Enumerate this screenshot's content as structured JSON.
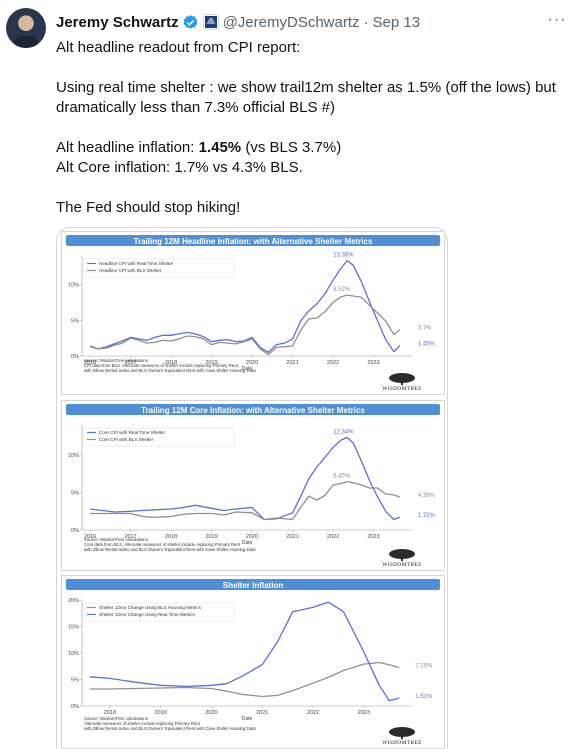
{
  "tweet": {
    "author_name": "Jeremy Schwartz",
    "handle": "@JeremyDSchwartz",
    "separator": "·",
    "date": "Sep 13",
    "more": "···",
    "verified_icon": "verified-badge-icon",
    "affiliation_icon": "wisdomtree-affiliate-icon",
    "text": {
      "line1": "Alt headline readout from CPI report:",
      "line2": "Using real time shelter : we show trail12m shelter as 1.5% (off the lows) but dramatically less than 7.3% official BLS #)",
      "line3_prefix": "Alt headline inflation: ",
      "line3_bold": "1.45%",
      "line3_suffix": " (vs BLS 3.7%)",
      "line4": "Alt Core inflation: 1.7% vs 4.3% BLS.",
      "line5": "The Fed should stop hiking!"
    },
    "colors": {
      "accent": "#1d9bf0",
      "secondary_text": "#536471",
      "gold": "#f2b300"
    }
  },
  "chart_data": [
    {
      "type": "line",
      "title": "Trailing 12M Headline Inflation: with Alternative Shelter Metrics",
      "title_bar_color": "#4f8fd8",
      "xlabel": "Date",
      "ylabel": "",
      "ylim": [
        0,
        14
      ],
      "x_ticks": [
        "2016",
        "2017",
        "2018",
        "2019",
        "2020",
        "2021",
        "2022",
        "2023"
      ],
      "y_ticks": [
        "0%",
        "5%",
        "10%"
      ],
      "grid": false,
      "legend": "top-left",
      "series": [
        {
          "name": "Headline CPI with Real Time Shelter",
          "color": "#5b6fd1",
          "x": [
            2016.0,
            2016.2,
            2016.4,
            2016.6,
            2016.8,
            2017.0,
            2017.2,
            2017.4,
            2017.6,
            2017.8,
            2018.0,
            2018.2,
            2018.4,
            2018.6,
            2018.8,
            2019.0,
            2019.2,
            2019.4,
            2019.6,
            2019.8,
            2020.0,
            2020.2,
            2020.4,
            2020.6,
            2020.8,
            2021.0,
            2021.2,
            2021.4,
            2021.6,
            2021.8,
            2022.0,
            2022.2,
            2022.35,
            2022.5,
            2022.7,
            2022.9,
            2023.1,
            2023.3,
            2023.5,
            2023.65
          ],
          "y": [
            1.4,
            1.0,
            1.3,
            1.7,
            2.1,
            2.6,
            2.4,
            2.2,
            2.6,
            2.9,
            2.9,
            3.1,
            3.3,
            3.1,
            2.7,
            2.0,
            2.2,
            2.3,
            2.0,
            2.1,
            2.6,
            1.2,
            0.5,
            1.6,
            1.8,
            2.4,
            4.9,
            6.3,
            7.3,
            8.7,
            10.6,
            12.3,
            13.36,
            12.7,
            10.4,
            7.6,
            4.9,
            2.3,
            0.6,
            1.45
          ]
        },
        {
          "name": "Headline CPI with BLS Shelter",
          "color": "#8f8f8f",
          "x": [
            2016.0,
            2016.2,
            2016.4,
            2016.6,
            2016.8,
            2017.0,
            2017.2,
            2017.4,
            2017.6,
            2017.8,
            2018.0,
            2018.2,
            2018.4,
            2018.6,
            2018.8,
            2019.0,
            2019.2,
            2019.4,
            2019.6,
            2019.8,
            2020.0,
            2020.2,
            2020.4,
            2020.6,
            2020.8,
            2021.0,
            2021.2,
            2021.4,
            2021.6,
            2021.8,
            2022.0,
            2022.2,
            2022.35,
            2022.5,
            2022.7,
            2022.9,
            2023.1,
            2023.3,
            2023.5,
            2023.65
          ],
          "y": [
            1.3,
            1.0,
            1.1,
            1.5,
            1.8,
            2.5,
            2.2,
            1.8,
            1.9,
            2.2,
            2.1,
            2.4,
            2.8,
            2.7,
            2.4,
            1.6,
            1.9,
            1.8,
            1.7,
            2.0,
            2.4,
            1.0,
            0.2,
            1.2,
            1.3,
            1.4,
            3.6,
            5.2,
            5.3,
            6.2,
            7.5,
            8.3,
            8.52,
            8.4,
            8.2,
            7.1,
            6.0,
            4.9,
            3.0,
            3.7
          ]
        }
      ],
      "annotations": [
        "13.36%",
        "8.52%",
        "3.7%",
        "1.45%"
      ],
      "source": [
        "Source: WisdomTree calculations.",
        "CPI data from BLS. Alternate measures of shelter include replacing Primary Rent",
        "with Zillow Rental Index and BLS Owners' Equivalent Rent with Case Shiller Housing Data"
      ],
      "logo": "WISDOMTREE"
    },
    {
      "type": "line",
      "title": "Trailing 12M Core Inflation: with Alternative Shelter Metrics",
      "title_bar_color": "#4f8fd8",
      "xlabel": "Date",
      "ylabel": "",
      "ylim": [
        0,
        14
      ],
      "x_ticks": [
        "2016",
        "2017",
        "2018",
        "2019",
        "2020",
        "2021",
        "2022",
        "2023"
      ],
      "y_ticks": [
        "0%",
        "5%",
        "10%"
      ],
      "grid": false,
      "legend": "top-left",
      "series": [
        {
          "name": "Core CPI with Real Time Shelter",
          "color": "#5b6fd1",
          "x": [
            2016.0,
            2016.3,
            2016.6,
            2017.0,
            2017.3,
            2017.6,
            2018.0,
            2018.3,
            2018.6,
            2019.0,
            2019.3,
            2019.6,
            2020.0,
            2020.3,
            2020.6,
            2021.0,
            2021.2,
            2021.4,
            2021.6,
            2021.8,
            2022.0,
            2022.2,
            2022.35,
            2022.5,
            2022.7,
            2022.9,
            2023.1,
            2023.3,
            2023.5,
            2023.65
          ],
          "y": [
            2.8,
            2.6,
            2.4,
            2.5,
            2.6,
            2.7,
            2.8,
            3.0,
            3.3,
            2.9,
            2.6,
            2.8,
            3.0,
            1.4,
            1.5,
            2.3,
            4.5,
            6.8,
            8.4,
            9.7,
            11.0,
            12.0,
            12.34,
            11.6,
            9.2,
            6.6,
            4.4,
            2.5,
            1.4,
            1.72
          ]
        },
        {
          "name": "Core CPI with BLS Shelter",
          "color": "#8f8f8f",
          "x": [
            2016.0,
            2016.3,
            2016.6,
            2017.0,
            2017.3,
            2017.6,
            2018.0,
            2018.3,
            2018.6,
            2019.0,
            2019.3,
            2019.6,
            2020.0,
            2020.3,
            2020.6,
            2021.0,
            2021.2,
            2021.4,
            2021.6,
            2021.8,
            2022.0,
            2022.2,
            2022.35,
            2022.5,
            2022.7,
            2022.9,
            2023.1,
            2023.3,
            2023.5,
            2023.65
          ],
          "y": [
            2.2,
            2.2,
            2.2,
            2.2,
            1.8,
            1.7,
            1.8,
            2.1,
            2.2,
            2.2,
            2.0,
            2.4,
            2.3,
            1.4,
            1.6,
            1.4,
            3.0,
            4.5,
            4.0,
            4.6,
            6.0,
            6.2,
            6.45,
            6.3,
            6.0,
            5.6,
            5.6,
            4.8,
            4.7,
            4.39
          ]
        }
      ],
      "annotations": [
        "12.34%",
        "6.45%",
        "4.39%",
        "1.72%"
      ],
      "source": [
        "Source: WisdomTree calculations.",
        "Core data from BLS. Alternate measures of shelter include replacing Primary Rent",
        "with Zillow Rental Index and BLS Owners' Equivalent Rent with Case Shiller Housing Data"
      ],
      "logo": "WISDOMTREE"
    },
    {
      "type": "line",
      "title": "Shelter Inflation",
      "title_bar_color": "#4f8fd8",
      "xlabel": "Date",
      "ylabel": "",
      "ylim": [
        0,
        20
      ],
      "x_ticks": [
        "2018",
        "2019",
        "2020",
        "2021",
        "2022",
        "2023"
      ],
      "y_ticks": [
        "0%",
        "5%",
        "10%",
        "15%",
        "20%"
      ],
      "grid": false,
      "legend": "top-left",
      "series": [
        {
          "name": "Shelter 12mo Change Using BLS Housing Metrics",
          "color": "#8f8f8f",
          "x": [
            2017.6,
            2018.0,
            2018.5,
            2019.0,
            2019.5,
            2020.0,
            2020.3,
            2020.6,
            2021.0,
            2021.3,
            2021.6,
            2022.0,
            2022.3,
            2022.6,
            2023.0,
            2023.3,
            2023.5,
            2023.7
          ],
          "y": [
            3.2,
            3.2,
            3.3,
            3.4,
            3.5,
            3.3,
            2.8,
            2.2,
            1.8,
            2.0,
            2.9,
            4.3,
            5.4,
            6.7,
            7.9,
            8.2,
            7.8,
            7.25
          ]
        },
        {
          "name": "Shelter 12mo Change Using Real Time Metrics",
          "color": "#5b6fd1",
          "x": [
            2017.6,
            2018.0,
            2018.5,
            2019.0,
            2019.5,
            2020.0,
            2020.3,
            2020.6,
            2021.0,
            2021.3,
            2021.6,
            2022.0,
            2022.3,
            2022.6,
            2023.0,
            2023.3,
            2023.5,
            2023.7
          ],
          "y": [
            5.5,
            5.2,
            4.5,
            3.9,
            3.7,
            3.9,
            4.2,
            5.6,
            7.8,
            12.1,
            17.8,
            18.6,
            19.6,
            17.8,
            10.2,
            4.0,
            1.0,
            1.51
          ]
        }
      ],
      "annotations": [
        "7.25%",
        "1.51%"
      ],
      "source": [
        "Source: WisdomTree calculations.",
        "Alternate measures of shelter include replacing Primary Rent",
        "with Zillow Rental Index and BLS Owners' Equivalent Rent with Case Shiller Housing Data"
      ],
      "logo": "WISDOMTREE"
    }
  ]
}
